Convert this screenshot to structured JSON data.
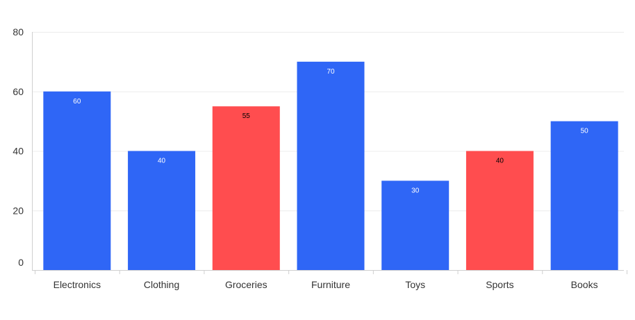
{
  "chart_data": {
    "type": "bar",
    "categories": [
      "Electronics",
      "Clothing",
      "Groceries",
      "Furniture",
      "Toys",
      "Sports",
      "Books"
    ],
    "values": [
      60,
      40,
      55,
      70,
      30,
      40,
      50
    ],
    "data_labels": [
      "60",
      "40",
      "55",
      "70",
      "30",
      "40",
      "50"
    ],
    "bar_colors": [
      "#2f66f6",
      "#2f66f6",
      "#ff4d4f",
      "#2f66f6",
      "#2f66f6",
      "#ff4d4f",
      "#2f66f6"
    ],
    "label_colors": [
      "#ffffff",
      "#ffffff",
      "#000000",
      "#ffffff",
      "#ffffff",
      "#000000",
      "#ffffff"
    ],
    "y_ticks": [
      0,
      20,
      40,
      60,
      80
    ],
    "ylim": [
      0,
      80
    ],
    "grid": true,
    "title": "",
    "xlabel": "",
    "ylabel": ""
  }
}
